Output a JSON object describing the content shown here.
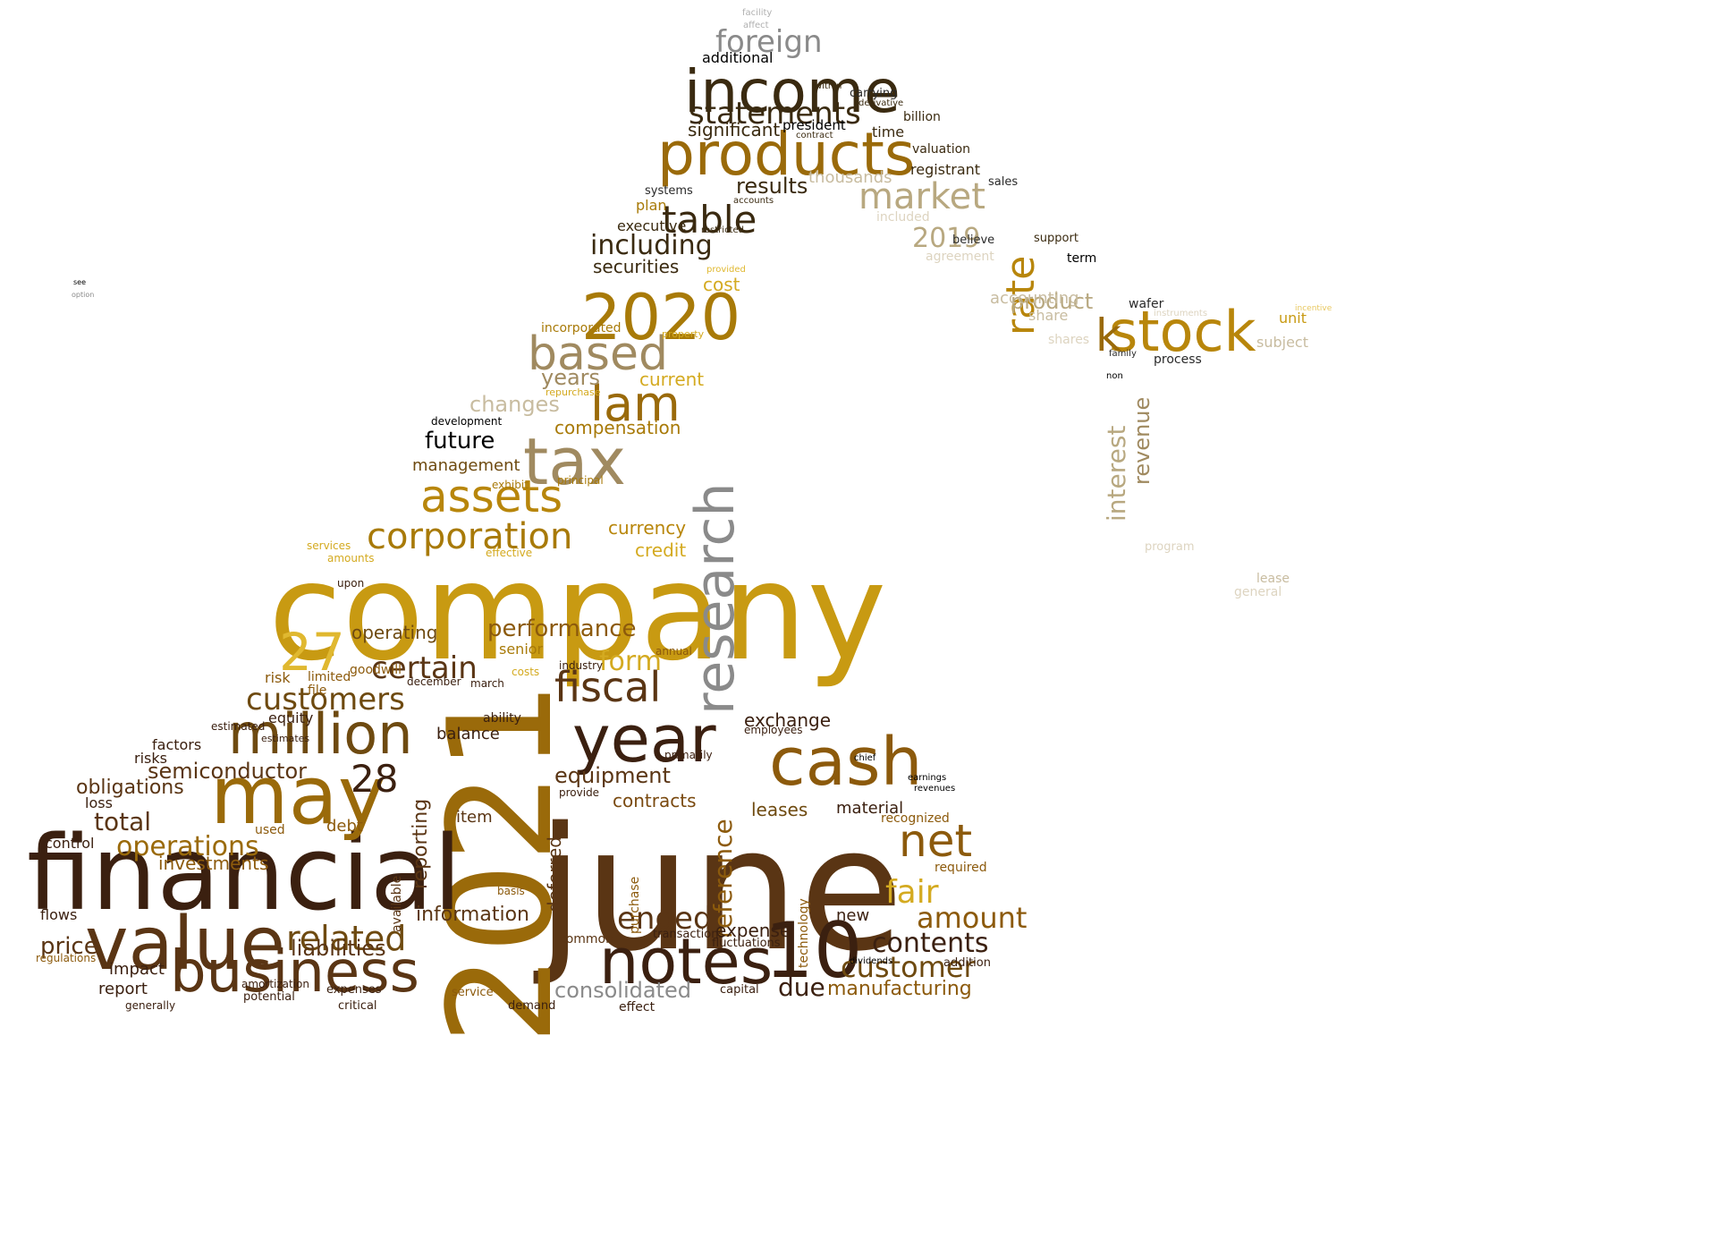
{
  "palette": [
    "#3b2010",
    "#5a3514",
    "#6e4a10",
    "#7a4a10",
    "#8c5a0c",
    "#9a6a0a",
    "#a87a08",
    "#b8860b",
    "#c89a12",
    "#d4aa20",
    "#e0b830",
    "#e8c860",
    "#a08a60",
    "#b8a880",
    "#c8bca0",
    "#ddd4c0",
    "#3a2a10",
    "#000000",
    "#2a2a2a",
    "#8a8a8a",
    "#b0b0b0"
  ],
  "words": [
    {
      "t": "company",
      "s": 1.0,
      "c": 8
    },
    {
      "t": "june",
      "s": 0.96,
      "c": 1
    },
    {
      "t": "2021",
      "s": 0.86,
      "c": 5
    },
    {
      "t": "financial",
      "s": 0.74,
      "c": 0
    },
    {
      "t": "notes",
      "s": 0.58,
      "c": 0
    },
    {
      "t": "business",
      "s": 0.58,
      "c": 1
    },
    {
      "t": "value",
      "s": 0.56,
      "c": 1
    },
    {
      "t": "million",
      "s": 0.52,
      "c": 2
    },
    {
      "t": "may",
      "s": 0.52,
      "c": 5
    },
    {
      "t": "year",
      "s": 0.5,
      "c": 0
    },
    {
      "t": "cash",
      "s": 0.5,
      "c": 4
    },
    {
      "t": "income",
      "s": 0.48,
      "c": 16
    },
    {
      "t": "products",
      "s": 0.48,
      "c": 5
    },
    {
      "t": "2020",
      "s": 0.46,
      "c": 6
    },
    {
      "t": "stock",
      "s": 0.46,
      "c": 7
    },
    {
      "t": "tax",
      "s": 0.46,
      "c": 12
    },
    {
      "t": "research",
      "s": 0.44,
      "c": 19
    },
    {
      "t": "10",
      "s": 0.44,
      "c": 0
    },
    {
      "t": "lam",
      "s": 0.4,
      "c": 5
    },
    {
      "t": "based",
      "s": 0.38,
      "c": 12
    },
    {
      "t": "assets",
      "s": 0.38,
      "c": 7
    },
    {
      "t": "net",
      "s": 0.36,
      "c": 4
    },
    {
      "t": "fiscal",
      "s": 0.34,
      "c": 1
    },
    {
      "t": "market",
      "s": 0.34,
      "c": 13
    },
    {
      "t": "corporation",
      "s": 0.32,
      "c": 6
    },
    {
      "t": "customers",
      "s": 0.3,
      "c": 2
    },
    {
      "t": "customer",
      "s": 0.3,
      "c": 2
    },
    {
      "t": "related",
      "s": 0.3,
      "c": 2
    },
    {
      "t": "amount",
      "s": 0.3,
      "c": 4
    },
    {
      "t": "fair",
      "s": 0.3,
      "c": 9
    },
    {
      "t": "table",
      "s": 0.3,
      "c": 16
    },
    {
      "t": "statements",
      "s": 0.28,
      "c": 16
    },
    {
      "t": "foreign",
      "s": 0.28,
      "c": 19
    },
    {
      "t": "27",
      "s": 0.3,
      "c": 10
    },
    {
      "t": "28",
      "s": 0.26,
      "c": 0
    },
    {
      "t": "rate",
      "s": 0.26,
      "c": 7
    },
    {
      "t": "k",
      "s": 0.3,
      "c": 5
    },
    {
      "t": "certain",
      "s": 0.28,
      "c": 1
    },
    {
      "t": "ended",
      "s": 0.28,
      "c": 1
    },
    {
      "t": "contents",
      "s": 0.26,
      "c": 0
    },
    {
      "t": "including",
      "s": 0.26,
      "c": 16
    },
    {
      "t": "reference",
      "s": 0.24,
      "c": 4
    },
    {
      "t": "operations",
      "s": 0.24,
      "c": 5
    },
    {
      "t": "form",
      "s": 0.24,
      "c": 9
    },
    {
      "t": "performance",
      "s": 0.22,
      "c": 4
    },
    {
      "t": "consolidated",
      "s": 0.2,
      "c": 19
    },
    {
      "t": "price",
      "s": 0.2,
      "c": 1
    },
    {
      "t": "due",
      "s": 0.22,
      "c": 0
    },
    {
      "t": "2019",
      "s": 0.22,
      "c": 13
    },
    {
      "t": "total",
      "s": 0.22,
      "c": 1
    },
    {
      "t": "liabilities",
      "s": 0.2,
      "c": 1
    },
    {
      "t": "years",
      "s": 0.2,
      "c": 12
    },
    {
      "t": "product",
      "s": 0.2,
      "c": 13
    },
    {
      "t": "equipment",
      "s": 0.2,
      "c": 1
    },
    {
      "t": "semiconductor",
      "s": 0.2,
      "c": 1
    },
    {
      "t": "future",
      "s": 0.2,
      "c": 17
    },
    {
      "t": "results",
      "s": 0.2,
      "c": 16
    },
    {
      "t": "interest",
      "s": 0.2,
      "c": 13
    },
    {
      "t": "changes",
      "s": 0.18,
      "c": 14
    },
    {
      "t": "obligations",
      "s": 0.18,
      "c": 1
    },
    {
      "t": "manufacturing",
      "s": 0.18,
      "c": 4
    },
    {
      "t": "information",
      "s": 0.18,
      "c": 1
    },
    {
      "t": "reporting",
      "s": 0.18,
      "c": 1
    },
    {
      "t": "revenue",
      "s": 0.18,
      "c": 12
    },
    {
      "t": "investments",
      "s": 0.16,
      "c": 4
    },
    {
      "t": "currency",
      "s": 0.16,
      "c": 7
    },
    {
      "t": "credit",
      "s": 0.16,
      "c": 9
    },
    {
      "t": "securities",
      "s": 0.16,
      "c": 16
    },
    {
      "t": "exchange",
      "s": 0.16,
      "c": 0
    },
    {
      "t": "contracts",
      "s": 0.16,
      "c": 3
    },
    {
      "t": "expense",
      "s": 0.16,
      "c": 0
    },
    {
      "t": "compensation",
      "s": 0.16,
      "c": 6
    },
    {
      "t": "operating",
      "s": 0.16,
      "c": 2
    },
    {
      "t": "deferred",
      "s": 0.16,
      "c": 1
    },
    {
      "t": "current",
      "s": 0.16,
      "c": 9
    },
    {
      "t": "cost",
      "s": 0.16,
      "c": 9
    },
    {
      "t": "significant",
      "s": 0.16,
      "c": 16
    },
    {
      "t": "leases",
      "s": 0.16,
      "c": 2
    },
    {
      "t": "management",
      "s": 0.14,
      "c": 2
    },
    {
      "t": "item",
      "s": 0.14,
      "c": 1
    },
    {
      "t": "balance",
      "s": 0.14,
      "c": 0
    },
    {
      "t": "impact",
      "s": 0.14,
      "c": 0
    },
    {
      "t": "report",
      "s": 0.14,
      "c": 0
    },
    {
      "t": "material",
      "s": 0.14,
      "c": 0
    },
    {
      "t": "new",
      "s": 0.14,
      "c": 0
    },
    {
      "t": "debt",
      "s": 0.14,
      "c": 4
    },
    {
      "t": "accounting",
      "s": 0.14,
      "c": 14
    },
    {
      "t": "thousands",
      "s": 0.14,
      "c": 14
    },
    {
      "t": "additional",
      "s": 0.14,
      "c": 17
    },
    {
      "t": "incorporated",
      "s": 0.12,
      "c": 6
    },
    {
      "t": "senior",
      "s": 0.12,
      "c": 6
    },
    {
      "t": "plan",
      "s": 0.12,
      "c": 6
    },
    {
      "t": "registrant",
      "s": 0.12,
      "c": 16
    },
    {
      "t": "share",
      "s": 0.12,
      "c": 14
    },
    {
      "t": "unit",
      "s": 0.12,
      "c": 8
    },
    {
      "t": "subject",
      "s": 0.12,
      "c": 14
    },
    {
      "t": "process",
      "s": 0.12,
      "c": 18
    },
    {
      "t": "wafer",
      "s": 0.12,
      "c": 18
    },
    {
      "t": "lease",
      "s": 0.12,
      "c": 14
    },
    {
      "t": "general",
      "s": 0.12,
      "c": 15
    },
    {
      "t": "program",
      "s": 0.12,
      "c": 15
    },
    {
      "t": "valuation",
      "s": 0.12,
      "c": 16
    },
    {
      "t": "billion",
      "s": 0.12,
      "c": 16
    },
    {
      "t": "time",
      "s": 0.12,
      "c": 16
    },
    {
      "t": "president",
      "s": 0.12,
      "c": 17
    },
    {
      "t": "carrying",
      "s": 0.12,
      "c": 18
    },
    {
      "t": "executive",
      "s": 0.12,
      "c": 16
    },
    {
      "t": "systems",
      "s": 0.12,
      "c": 18
    },
    {
      "t": "sales",
      "s": 0.12,
      "c": 18
    },
    {
      "t": "believe",
      "s": 0.12,
      "c": 18
    },
    {
      "t": "support",
      "s": 0.12,
      "c": 16
    },
    {
      "t": "term",
      "s": 0.12,
      "c": 17
    },
    {
      "t": "shares",
      "s": 0.12,
      "c": 15
    },
    {
      "t": "agreement",
      "s": 0.12,
      "c": 15
    },
    {
      "t": "included",
      "s": 0.12,
      "c": 15
    },
    {
      "t": "risks",
      "s": 0.12,
      "c": 0
    },
    {
      "t": "factors",
      "s": 0.12,
      "c": 0
    },
    {
      "t": "flows",
      "s": 0.12,
      "c": 0
    },
    {
      "t": "loss",
      "s": 0.12,
      "c": 0
    },
    {
      "t": "control",
      "s": 0.12,
      "c": 0
    },
    {
      "t": "equity",
      "s": 0.12,
      "c": 0
    },
    {
      "t": "risk",
      "s": 0.12,
      "c": 4
    },
    {
      "t": "limited",
      "s": 0.12,
      "c": 4
    },
    {
      "t": "file",
      "s": 0.12,
      "c": 4
    },
    {
      "t": "goodwill",
      "s": 0.12,
      "c": 4
    },
    {
      "t": "available",
      "s": 0.12,
      "c": 1
    },
    {
      "t": "used",
      "s": 0.12,
      "c": 4
    },
    {
      "t": "common",
      "s": 0.12,
      "c": 1
    },
    {
      "t": "purchase",
      "s": 0.12,
      "c": 4
    },
    {
      "t": "technology",
      "s": 0.12,
      "c": 4
    },
    {
      "t": "recognized",
      "s": 0.12,
      "c": 4
    },
    {
      "t": "required",
      "s": 0.12,
      "c": 4
    },
    {
      "t": "ability",
      "s": 0.12,
      "c": 0
    },
    {
      "t": "fluctuations",
      "s": 0.11,
      "c": 0
    },
    {
      "t": "transactions",
      "s": 0.11,
      "c": 0
    },
    {
      "t": "addition",
      "s": 0.11,
      "c": 0
    },
    {
      "t": "expenses",
      "s": 0.11,
      "c": 0
    },
    {
      "t": "potential",
      "s": 0.11,
      "c": 0
    },
    {
      "t": "capital",
      "s": 0.11,
      "c": 0
    },
    {
      "t": "effect",
      "s": 0.11,
      "c": 0
    },
    {
      "t": "critical",
      "s": 0.11,
      "c": 0
    },
    {
      "t": "demand",
      "s": 0.11,
      "c": 0
    },
    {
      "t": "service",
      "s": 0.11,
      "c": 4
    },
    {
      "t": "amortization",
      "s": 0.11,
      "c": 0
    },
    {
      "t": "generally",
      "s": 0.11,
      "c": 0
    },
    {
      "t": "regulations",
      "s": 0.11,
      "c": 4
    },
    {
      "t": "provide",
      "s": 0.11,
      "c": 0
    },
    {
      "t": "basis",
      "s": 0.11,
      "c": 4
    },
    {
      "t": "costs",
      "s": 0.11,
      "c": 9
    },
    {
      "t": "industry",
      "s": 0.11,
      "c": 0
    },
    {
      "t": "december",
      "s": 0.11,
      "c": 0
    },
    {
      "t": "march",
      "s": 0.11,
      "c": 0
    },
    {
      "t": "annual",
      "s": 0.11,
      "c": 4
    },
    {
      "t": "primarily",
      "s": 0.11,
      "c": 0
    },
    {
      "t": "employees",
      "s": 0.11,
      "c": 0
    },
    {
      "t": "estimated",
      "s": 0.11,
      "c": 0
    },
    {
      "t": "estimates",
      "s": 0.11,
      "c": 0
    },
    {
      "t": "services",
      "s": 0.11,
      "c": 9
    },
    {
      "t": "amounts",
      "s": 0.11,
      "c": 9
    },
    {
      "t": "upon",
      "s": 0.11,
      "c": 0
    },
    {
      "t": "effective",
      "s": 0.11,
      "c": 9
    },
    {
      "t": "principal",
      "s": 0.11,
      "c": 6
    },
    {
      "t": "exhibit",
      "s": 0.11,
      "c": 6
    },
    {
      "t": "development",
      "s": 0.11,
      "c": 17
    },
    {
      "t": "repurchase",
      "s": 0.1,
      "c": 9
    },
    {
      "t": "property",
      "s": 0.1,
      "c": 9
    },
    {
      "t": "provided",
      "s": 0.1,
      "c": 10
    },
    {
      "t": "restricted",
      "s": 0.1,
      "c": 16
    },
    {
      "t": "accounts",
      "s": 0.1,
      "c": 16
    },
    {
      "t": "contract",
      "s": 0.1,
      "c": 16
    },
    {
      "t": "derivative",
      "s": 0.1,
      "c": 16
    },
    {
      "t": "within",
      "s": 0.1,
      "c": 16
    },
    {
      "t": "facility",
      "s": 0.1,
      "c": 20
    },
    {
      "t": "affect",
      "s": 0.1,
      "c": 20
    },
    {
      "t": "incentive",
      "s": 0.1,
      "c": 11
    },
    {
      "t": "instruments",
      "s": 0.1,
      "c": 15
    },
    {
      "t": "family",
      "s": 0.1,
      "c": 18
    },
    {
      "t": "non",
      "s": 0.1,
      "c": 17
    },
    {
      "t": "dividends",
      "s": 0.1,
      "c": 17
    },
    {
      "t": "chief",
      "s": 0.1,
      "c": 17
    },
    {
      "t": "earnings",
      "s": 0.1,
      "c": 17
    },
    {
      "t": "revenues",
      "s": 0.1,
      "c": 17
    },
    {
      "t": "see",
      "s": 0.07,
      "c": 17
    },
    {
      "t": "option",
      "s": 0.07,
      "c": 19
    }
  ]
}
